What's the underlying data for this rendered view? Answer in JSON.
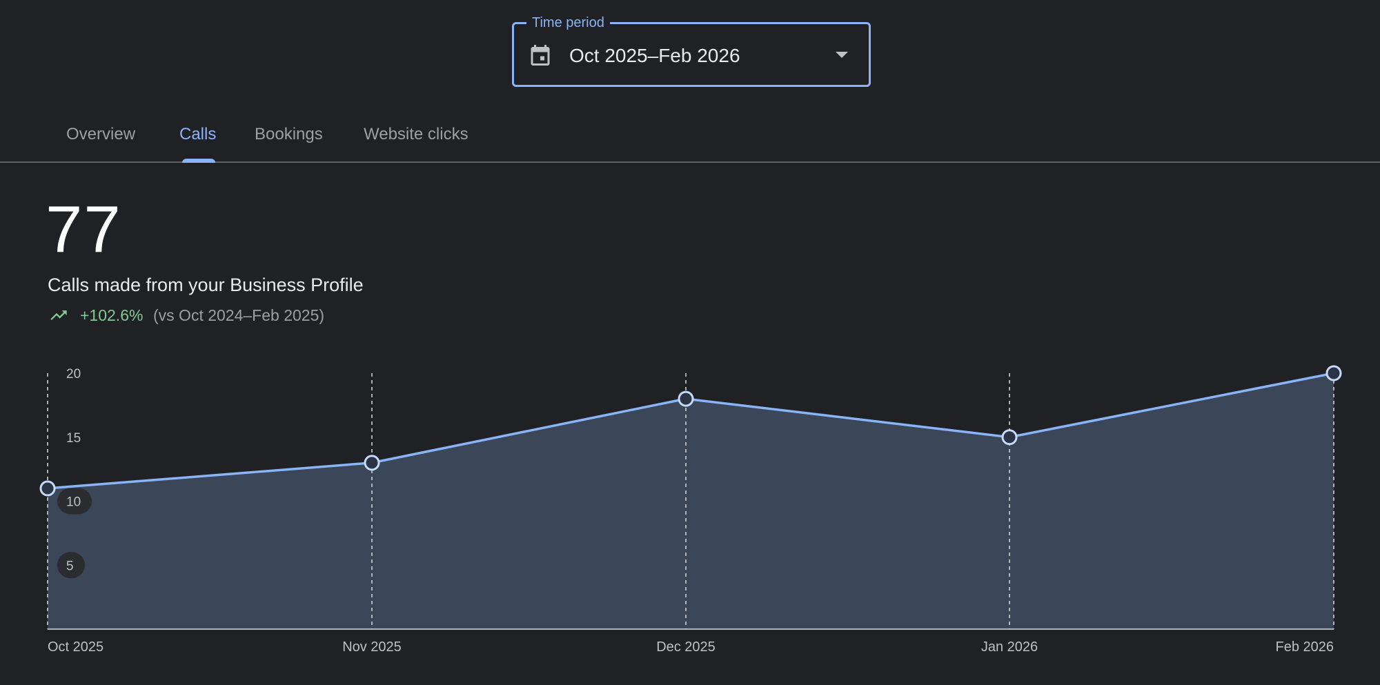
{
  "time_period": {
    "legend": "Time period",
    "value": "Oct 2025–Feb 2026",
    "icon": "calendar-icon",
    "caret_icon": "caret-down-icon"
  },
  "tabs": [
    {
      "label": "Overview",
      "active": false
    },
    {
      "label": "Calls",
      "active": true
    },
    {
      "label": "Bookings",
      "active": false
    },
    {
      "label": "Website clicks",
      "active": false
    }
  ],
  "metric": {
    "value": "77",
    "label": "Calls made from your Business Profile",
    "change": "+102.6%",
    "comparison": "(vs Oct 2024–Feb 2025)",
    "trend_icon": "trending-up-icon"
  },
  "colors": {
    "accent": "#8ab4f8",
    "positive": "#81c995",
    "background": "#202124",
    "area_fill": "#3b4759"
  },
  "chart_data": {
    "type": "area",
    "categories": [
      "Oct 2025",
      "Nov 2025",
      "Dec 2025",
      "Jan 2026",
      "Feb 2026"
    ],
    "series": [
      {
        "values": [
          11,
          13,
          18,
          15,
          20
        ]
      }
    ],
    "yticks": [
      5,
      10,
      15,
      20
    ],
    "ylim": [
      0,
      20
    ],
    "grid": "vertical dashed"
  }
}
